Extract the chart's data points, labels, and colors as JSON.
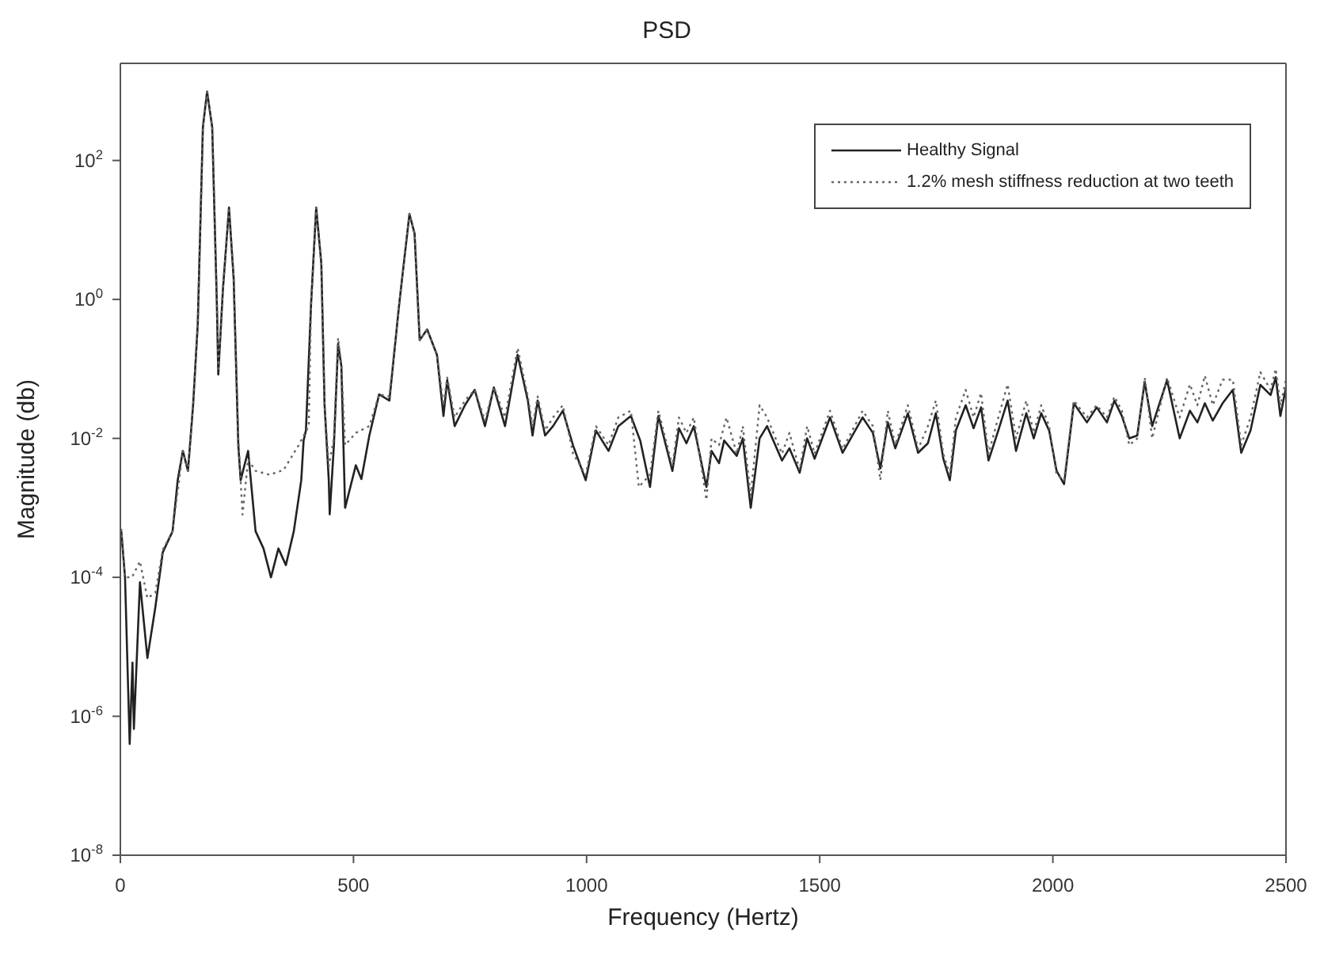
{
  "chart_data": {
    "type": "line",
    "title": "PSD",
    "xlabel": "Frequency (Hertz)",
    "ylabel": "Magnitude (db)",
    "log": "y",
    "grid": false,
    "legend": "top right",
    "marker": "none",
    "xlim": [
      0,
      2500
    ],
    "xticks": [
      0,
      500,
      1000,
      1500,
      2000,
      2500
    ],
    "ylim": [
      1e-08,
      2500
    ],
    "yticks": [
      {
        "value": 1e-08,
        "label": "10$^{-8}$"
      },
      {
        "value": 1e-06,
        "label": "10$^{-6}$"
      },
      {
        "value": 0.0001,
        "label": "10$^{-4}$"
      },
      {
        "value": 0.01,
        "label": "10$^{-2}$"
      },
      {
        "value": 1,
        "label": "10$^{0}$"
      },
      {
        "value": 100,
        "label": "10$^{2}$"
      }
    ],
    "series": [
      {
        "name": "Healthy Signal",
        "color": "#222222",
        "line_style": "solid",
        "x": [
          2,
          10,
          20,
          26,
          29,
          42,
          58,
          75,
          91,
          112,
          123,
          134,
          145,
          156,
          166,
          177,
          186,
          197,
          207,
          210,
          220,
          233,
          243,
          253,
          258,
          274,
          290,
          307,
          323,
          339,
          355,
          372,
          388,
          393,
          398,
          409,
          420,
          431,
          438,
          447,
          449,
          458,
          467,
          474,
          482,
          505,
          517,
          534,
          555,
          577,
          598,
          620,
          631,
          642,
          658,
          679,
          693,
          701,
          717,
          739,
          760,
          782,
          801,
          825,
          852,
          874,
          884,
          895,
          911,
          928,
          949,
          971,
          998,
          1020,
          1047,
          1068,
          1095,
          1115,
          1136,
          1154,
          1184,
          1198,
          1214,
          1230,
          1257,
          1268,
          1284,
          1295,
          1322,
          1335,
          1352,
          1371,
          1387,
          1419,
          1435,
          1457,
          1473,
          1489,
          1522,
          1549,
          1592,
          1614,
          1630,
          1646,
          1662,
          1689,
          1711,
          1732,
          1749,
          1765,
          1779,
          1792,
          1813,
          1830,
          1846,
          1862,
          1883,
          1903,
          1921,
          1943,
          1959,
          1975,
          1992,
          2008,
          2024,
          2045,
          2073,
          2094,
          2116,
          2132,
          2148,
          2164,
          2181,
          2197,
          2213,
          2245,
          2272,
          2294,
          2310,
          2326,
          2343,
          2364,
          2386,
          2404,
          2424,
          2445,
          2467,
          2478,
          2488,
          2500
        ],
        "values": [
          0.00046,
          0.0001,
          4e-07,
          5.9e-06,
          6.6e-07,
          8.5e-05,
          6.9e-06,
          3.7e-05,
          0.00023,
          0.00046,
          0.0025,
          0.0066,
          0.0034,
          0.03,
          0.44,
          300,
          980,
          300,
          0.85,
          0.083,
          1.4,
          21,
          2.0,
          0.0079,
          0.0025,
          0.0066,
          0.00046,
          0.00026,
          0.0001,
          0.00026,
          0.00015,
          0.00046,
          0.0025,
          0.0093,
          0.013,
          0.85,
          21,
          3.3,
          0.03,
          0.0025,
          0.00081,
          0.0079,
          0.23,
          0.11,
          0.001,
          0.0041,
          0.0026,
          0.011,
          0.043,
          0.035,
          0.85,
          17,
          8.9,
          0.26,
          0.37,
          0.16,
          0.021,
          0.069,
          0.015,
          0.03,
          0.05,
          0.015,
          0.054,
          0.015,
          0.16,
          0.035,
          0.011,
          0.035,
          0.011,
          0.015,
          0.025,
          0.0079,
          0.0025,
          0.013,
          0.0066,
          0.015,
          0.021,
          0.0093,
          0.002,
          0.021,
          0.0034,
          0.014,
          0.0085,
          0.015,
          0.002,
          0.0066,
          0.0044,
          0.0093,
          0.0056,
          0.01,
          0.001,
          0.01,
          0.015,
          0.0048,
          0.0072,
          0.0032,
          0.01,
          0.0051,
          0.02,
          0.0062,
          0.02,
          0.012,
          0.0037,
          0.017,
          0.0072,
          0.023,
          0.0062,
          0.0085,
          0.023,
          0.0051,
          0.0025,
          0.013,
          0.03,
          0.014,
          0.028,
          0.0048,
          0.013,
          0.035,
          0.0066,
          0.023,
          0.01,
          0.023,
          0.013,
          0.0034,
          0.0022,
          0.032,
          0.017,
          0.028,
          0.017,
          0.035,
          0.021,
          0.01,
          0.011,
          0.065,
          0.015,
          0.069,
          0.01,
          0.025,
          0.017,
          0.032,
          0.018,
          0.032,
          0.05,
          0.0062,
          0.013,
          0.059,
          0.042,
          0.076,
          0.021,
          0.054
        ]
      },
      {
        "name": "1.2% mesh stiffness reduction at two teeth",
        "color": "#666666",
        "line_style": "dotted",
        "x": [
          2,
          10,
          25,
          42,
          58,
          75,
          91,
          112,
          134,
          145,
          156,
          166,
          177,
          186,
          197,
          207,
          210,
          220,
          233,
          243,
          253,
          262,
          274,
          290,
          320,
          350,
          382,
          404,
          409,
          420,
          431,
          438,
          447,
          458,
          467,
          474,
          482,
          505,
          534,
          555,
          577,
          598,
          620,
          631,
          642,
          658,
          679,
          693,
          701,
          717,
          739,
          760,
          782,
          801,
          825,
          852,
          874,
          884,
          895,
          911,
          928,
          949,
          971,
          998,
          1020,
          1047,
          1068,
          1095,
          1112,
          1136,
          1154,
          1184,
          1198,
          1214,
          1230,
          1257,
          1268,
          1284,
          1300,
          1322,
          1335,
          1352,
          1371,
          1387,
          1419,
          1435,
          1457,
          1473,
          1489,
          1522,
          1549,
          1592,
          1614,
          1630,
          1646,
          1662,
          1689,
          1711,
          1732,
          1749,
          1765,
          1779,
          1792,
          1813,
          1830,
          1846,
          1862,
          1883,
          1903,
          1921,
          1943,
          1959,
          1975,
          1992,
          2008,
          2024,
          2045,
          2073,
          2094,
          2116,
          2132,
          2148,
          2164,
          2181,
          2197,
          2213,
          2245,
          2272,
          2294,
          2310,
          2326,
          2343,
          2364,
          2386,
          2404,
          2424,
          2445,
          2467,
          2478,
          2488,
          2500
        ],
        "values": [
          0.0005,
          0.0001,
          0.0001,
          0.00017,
          5e-05,
          6e-05,
          0.00025,
          0.00046,
          0.0066,
          0.0034,
          0.03,
          0.44,
          300,
          980,
          300,
          0.85,
          0.1,
          1.4,
          21,
          2.0,
          0.01,
          0.0008,
          0.005,
          0.0034,
          0.003,
          0.0035,
          0.0079,
          0.015,
          0.85,
          21,
          3.3,
          0.03,
          0.004,
          0.01,
          0.28,
          0.11,
          0.008,
          0.012,
          0.015,
          0.043,
          0.04,
          0.85,
          17,
          8.9,
          0.26,
          0.37,
          0.16,
          0.03,
          0.075,
          0.02,
          0.035,
          0.05,
          0.018,
          0.055,
          0.02,
          0.2,
          0.04,
          0.015,
          0.04,
          0.013,
          0.02,
          0.03,
          0.006,
          0.003,
          0.015,
          0.008,
          0.02,
          0.025,
          0.002,
          0.003,
          0.025,
          0.004,
          0.02,
          0.012,
          0.02,
          0.0013,
          0.01,
          0.008,
          0.02,
          0.006,
          0.015,
          0.0015,
          0.03,
          0.02,
          0.006,
          0.012,
          0.0035,
          0.015,
          0.006,
          0.025,
          0.007,
          0.025,
          0.015,
          0.0025,
          0.025,
          0.008,
          0.03,
          0.007,
          0.015,
          0.035,
          0.006,
          0.003,
          0.02,
          0.05,
          0.02,
          0.045,
          0.006,
          0.02,
          0.06,
          0.01,
          0.035,
          0.012,
          0.03,
          0.015,
          0.003,
          0.0025,
          0.035,
          0.02,
          0.03,
          0.02,
          0.04,
          0.025,
          0.008,
          0.01,
          0.075,
          0.01,
          0.075,
          0.02,
          0.06,
          0.03,
          0.08,
          0.03,
          0.07,
          0.07,
          0.008,
          0.02,
          0.09,
          0.05,
          0.1,
          0.03,
          0.07
        ]
      }
    ]
  }
}
